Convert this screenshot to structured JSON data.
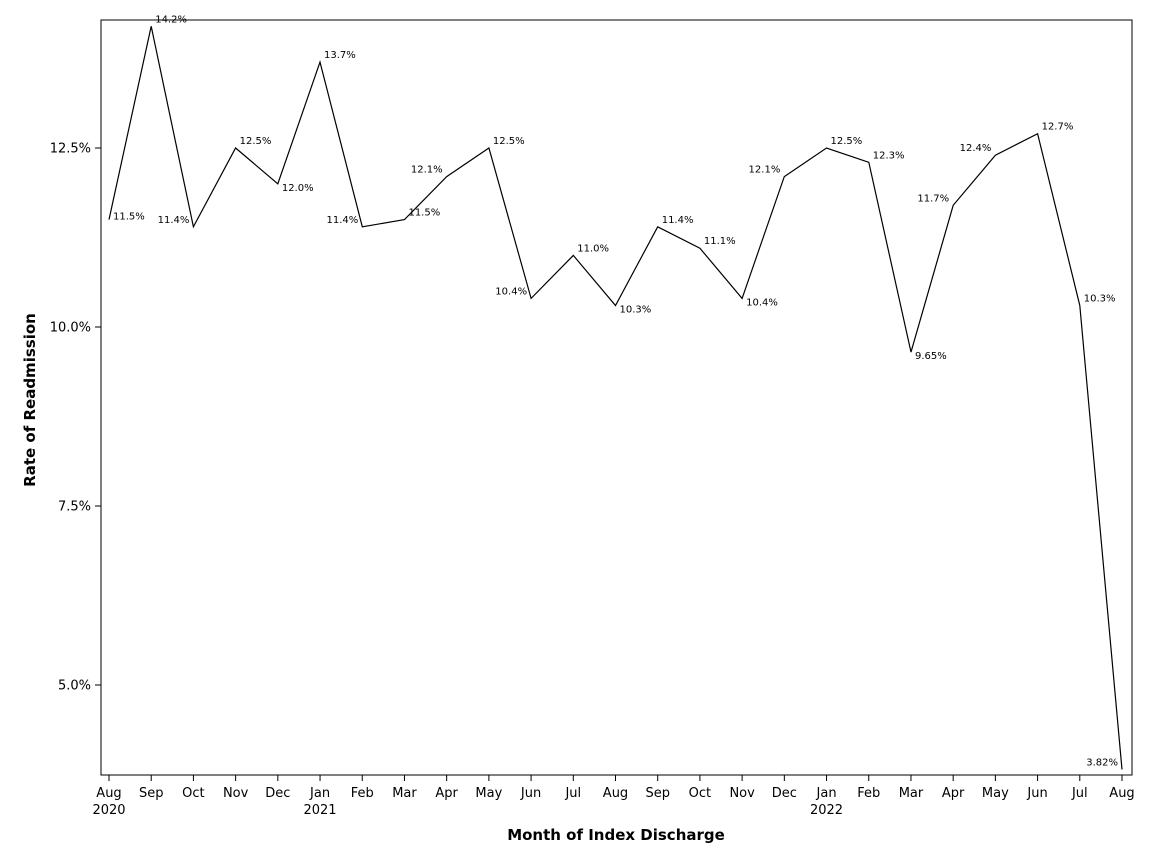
{
  "chart_data": {
    "type": "line",
    "title": "",
    "xlabel": "Month of Index Discharge",
    "ylabel": "Rate of Readmission",
    "ylim": [
      3.8,
      14.4
    ],
    "yticks": [
      5.0,
      7.5,
      10.0,
      12.5
    ],
    "ytick_labels": [
      "5.0%",
      "7.5%",
      "10.0%",
      "12.5%"
    ],
    "grid": false,
    "categories": [
      "Aug",
      "Sep",
      "Oct",
      "Nov",
      "Dec",
      "Jan",
      "Feb",
      "Mar",
      "Apr",
      "May",
      "Jun",
      "Jul",
      "Aug",
      "Sep",
      "Oct",
      "Nov",
      "Dec",
      "Jan",
      "Feb",
      "Mar",
      "Apr",
      "May",
      "Jun",
      "Jul",
      "Aug"
    ],
    "year_labels": [
      {
        "index": 0,
        "text": "2020"
      },
      {
        "index": 5,
        "text": "2021"
      },
      {
        "index": 17,
        "text": "2022"
      }
    ],
    "series": [
      {
        "name": "Rate of Readmission",
        "values": [
          11.5,
          14.2,
          11.4,
          12.5,
          12.0,
          13.7,
          11.4,
          11.5,
          12.1,
          12.5,
          10.4,
          11.0,
          10.3,
          11.4,
          11.1,
          10.4,
          12.1,
          12.5,
          12.3,
          9.65,
          11.7,
          12.4,
          12.7,
          10.3,
          3.82
        ],
        "labels": [
          "11.5%",
          "14.2%",
          "11.4%",
          "12.5%",
          "12.0%",
          "13.7%",
          "11.4%",
          "11.5%",
          "12.1%",
          "12.5%",
          "10.4%",
          "11.0%",
          "10.3%",
          "11.4%",
          "11.1%",
          "10.4%",
          "12.1%",
          "12.5%",
          "12.3%",
          "9.65%",
          "11.7%",
          "12.4%",
          "12.7%",
          "10.3%",
          "3.82%"
        ],
        "label_positions": [
          "right",
          "right",
          "left",
          "right",
          "below",
          "right",
          "left",
          "right",
          "left",
          "right",
          "left",
          "right",
          "below",
          "right",
          "right",
          "right",
          "left",
          "right",
          "right",
          "right",
          "left",
          "left",
          "right",
          "right",
          "left"
        ]
      }
    ]
  }
}
